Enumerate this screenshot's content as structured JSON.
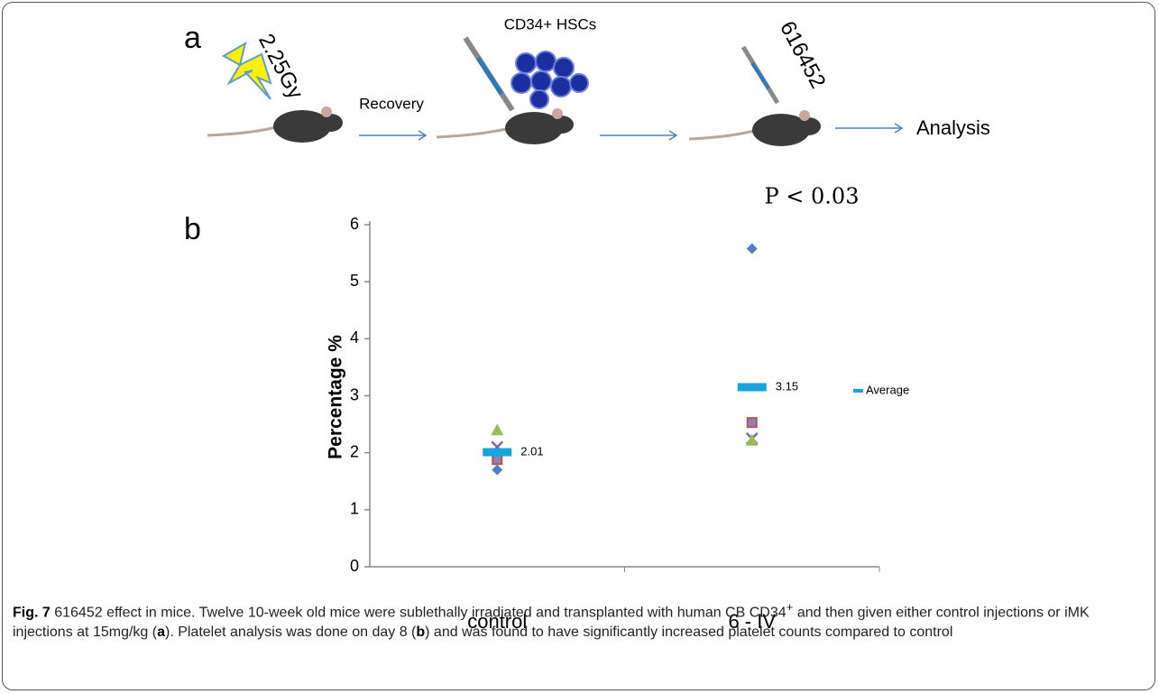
{
  "panel_a": {
    "label": "a",
    "dose": "2.25Gy",
    "step1": "Recovery",
    "cells": "CD34+ HSCs",
    "compound": "616452",
    "step2": "Analysis"
  },
  "chart_data": {
    "type": "scatter",
    "panel_label": "b",
    "annotation": "P  < 0.03",
    "y_label": "Percentage %",
    "categories": [
      "control",
      "6 - IV"
    ],
    "ylim": [
      0,
      6
    ],
    "yticks": [
      0,
      1,
      2,
      3,
      4,
      5,
      6
    ],
    "series": [
      {
        "marker": "diamond",
        "color": "#4f81bd",
        "values": [
          1.7,
          5.58
        ]
      },
      {
        "marker": "square",
        "color": "#c0504d",
        "values": [
          1.88,
          2.53
        ]
      },
      {
        "marker": "cross",
        "color": "#8064a2",
        "values": [
          2.1,
          2.25
        ]
      },
      {
        "marker": "triangle",
        "color": "#9bbb59",
        "values": [
          2.4,
          2.22
        ]
      },
      {
        "name": "Average",
        "marker": "dash",
        "color": "#1aa4dd",
        "values": [
          2.01,
          3.15
        ],
        "value_labels": [
          "2.01",
          "3.15"
        ]
      }
    ]
  },
  "caption": [
    "Fig. 7",
    " 616452 effect in mice. Twelve 10-week old mice were sublethally irradiated and transplanted with human CB CD34",
    "+",
    " and then given either control injections or iMK injections at 15mg/kg (",
    "a",
    "). Platelet analysis was done on day 8 (",
    "b",
    ") and was found to have significantly increased platelet counts compared to control"
  ]
}
